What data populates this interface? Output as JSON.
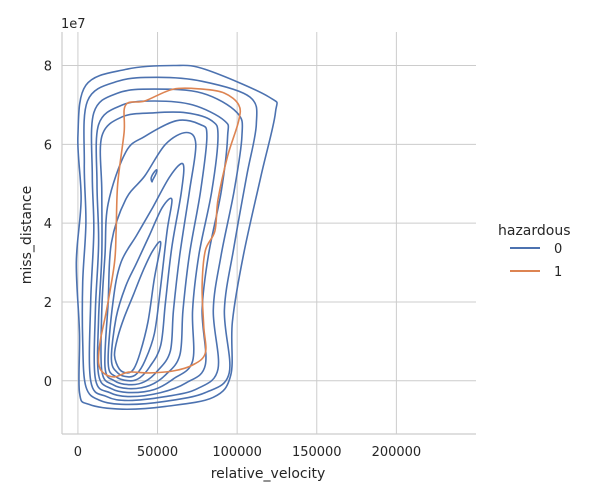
{
  "chart_data": {
    "type": "kde-contour",
    "xlabel": "relative_velocity",
    "ylabel": "miss_distance",
    "y_offset_label": "1e7",
    "xlim": [
      -10000,
      250000
    ],
    "ylim": [
      -13500000.0,
      88500000.0
    ],
    "x_ticks": [
      0,
      50000,
      100000,
      150000,
      200000
    ],
    "x_tick_labels": [
      "0",
      "50000",
      "100000",
      "150000",
      "200000"
    ],
    "y_ticks": [
      0,
      20000000,
      40000000,
      60000000,
      80000000
    ],
    "y_tick_labels": [
      "0",
      "2",
      "4",
      "6",
      "8"
    ],
    "grid": true,
    "legend": {
      "title": "hazardous",
      "placement": "right",
      "entries": [
        {
          "label": "0",
          "color": "#4c72b0"
        },
        {
          "label": "1",
          "color": "#dd8452"
        }
      ]
    },
    "series": [
      {
        "name": "0",
        "color": "#4c72b0",
        "contours": [
          [
            [
              1000,
              -3000000
            ],
            [
              7000,
              -6000000
            ],
            [
              28000,
              -7200000
            ],
            [
              55000,
              -6500000
            ],
            [
              85000,
              -4200000
            ],
            [
              96000,
              1500000
            ],
            [
              97000,
              15000000
            ],
            [
              104000,
              32000000
            ],
            [
              115000,
              52000000
            ],
            [
              124000,
              68000000
            ],
            [
              120000,
              72000000
            ],
            [
              80000,
              79000000
            ],
            [
              60000,
              80000000
            ],
            [
              30000,
              79000000
            ],
            [
              5000,
              75000000
            ],
            [
              0,
              62000000
            ],
            [
              2000,
              46000000
            ],
            [
              -1000,
              30000000
            ],
            [
              1000,
              12000000
            ]
          ],
          [
            [
              5000,
              -1500000
            ],
            [
              14000,
              -5000000
            ],
            [
              30000,
              -6000000
            ],
            [
              55000,
              -5200000
            ],
            [
              80000,
              -3000000
            ],
            [
              95000,
              2000000
            ],
            [
              92000,
              18000000
            ],
            [
              98000,
              34000000
            ],
            [
              106000,
              52000000
            ],
            [
              112000,
              65000000
            ],
            [
              108000,
              72000000
            ],
            [
              78000,
              76000000
            ],
            [
              50000,
              77000000
            ],
            [
              25000,
              76000000
            ],
            [
              6000,
              71000000
            ],
            [
              4000,
              55000000
            ],
            [
              5000,
              40000000
            ],
            [
              3000,
              25000000
            ],
            [
              3000,
              10000000
            ]
          ],
          [
            [
              8000,
              0
            ],
            [
              18000,
              -4000000
            ],
            [
              32000,
              -5000000
            ],
            [
              55000,
              -4000000
            ],
            [
              75000,
              -2000000
            ],
            [
              88000,
              3000000
            ],
            [
              85000,
              18000000
            ],
            [
              90000,
              32000000
            ],
            [
              98000,
              48000000
            ],
            [
              103000,
              62000000
            ],
            [
              100000,
              68000000
            ],
            [
              78000,
              73000000
            ],
            [
              48000,
              74000000
            ],
            [
              25000,
              73000000
            ],
            [
              10000,
              68000000
            ],
            [
              9000,
              52000000
            ],
            [
              10000,
              38000000
            ],
            [
              8000,
              20000000
            ]
          ],
          [
            [
              11000,
              500000
            ],
            [
              20000,
              -3000000
            ],
            [
              33000,
              -4000000
            ],
            [
              52000,
              -3000000
            ],
            [
              68000,
              -500000
            ],
            [
              80000,
              4000000
            ],
            [
              78000,
              18000000
            ],
            [
              82000,
              32000000
            ],
            [
              90000,
              48000000
            ],
            [
              94000,
              62000000
            ],
            [
              92000,
              66000000
            ],
            [
              72000,
              70000000
            ],
            [
              48000,
              71000000
            ],
            [
              28000,
              70000000
            ],
            [
              13000,
              65000000
            ],
            [
              12000,
              50000000
            ],
            [
              13000,
              35000000
            ],
            [
              11000,
              18000000
            ]
          ],
          [
            [
              13000,
              1500000
            ],
            [
              21000,
              -2000000
            ],
            [
              33000,
              -3000000
            ],
            [
              48000,
              -2200000
            ],
            [
              60000,
              500000
            ],
            [
              72000,
              5000000
            ],
            [
              72000,
              18000000
            ],
            [
              76000,
              32000000
            ],
            [
              84000,
              48000000
            ],
            [
              88000,
              62000000
            ],
            [
              84000,
              66000000
            ],
            [
              68000,
              68000000
            ],
            [
              48000,
              68000000
            ],
            [
              28000,
              67000000
            ],
            [
              15000,
              62000000
            ],
            [
              15000,
              48000000
            ],
            [
              15000,
              32000000
            ],
            [
              13000,
              16000000
            ]
          ],
          [
            [
              15000,
              2500000
            ],
            [
              22000,
              -1000000
            ],
            [
              33000,
              -2000000
            ],
            [
              45000,
              -1200000
            ],
            [
              55000,
              1500000
            ],
            [
              64000,
              6500000
            ],
            [
              66000,
              18000000
            ],
            [
              70000,
              32000000
            ],
            [
              77000,
              48000000
            ],
            [
              81000,
              62000000
            ],
            [
              77000,
              65000000
            ],
            [
              62000,
              66000000
            ],
            [
              42000,
              62000000
            ],
            [
              30000,
              58000000
            ],
            [
              19000,
              45000000
            ],
            [
              17000,
              32000000
            ],
            [
              15000,
              18000000
            ]
          ],
          [
            [
              17000,
              3500000
            ],
            [
              23000,
              0
            ],
            [
              33000,
              -1000000
            ],
            [
              42000,
              -200000
            ],
            [
              50000,
              2500000
            ],
            [
              58000,
              7500000
            ],
            [
              60000,
              18000000
            ],
            [
              64000,
              32000000
            ],
            [
              70000,
              48000000
            ],
            [
              74000,
              60000000
            ],
            [
              68000,
              63000000
            ],
            [
              55000,
              60000000
            ],
            [
              42000,
              52000000
            ],
            [
              30000,
              46000000
            ],
            [
              21000,
              35000000
            ],
            [
              19000,
              20000000
            ]
          ],
          [
            [
              19000,
              4500000
            ],
            [
              24000,
              1000000
            ],
            [
              33000,
              0
            ],
            [
              39000,
              800000
            ],
            [
              45000,
              3500000
            ],
            [
              52000,
              9000000
            ],
            [
              55000,
              20000000
            ],
            [
              59000,
              34000000
            ],
            [
              65000,
              48000000
            ],
            [
              66000,
              55000000
            ],
            [
              58000,
              52000000
            ],
            [
              47000,
              44000000
            ],
            [
              37000,
              37000000
            ],
            [
              27000,
              30000000
            ],
            [
              22000,
              20000000
            ]
          ],
          [
            [
              21000,
              5500000
            ],
            [
              25000,
              2000000
            ],
            [
              32000,
              1000000
            ],
            [
              37000,
              1800000
            ],
            [
              42000,
              5000000
            ],
            [
              48000,
              12000000
            ],
            [
              52000,
              24000000
            ],
            [
              56000,
              38000000
            ],
            [
              59000,
              46000000
            ],
            [
              53000,
              44000000
            ],
            [
              45000,
              37000000
            ],
            [
              37000,
              30000000
            ],
            [
              30000,
              24000000
            ],
            [
              24000,
              16000000
            ]
          ],
          [
            [
              23000,
              6500000
            ],
            [
              26000,
              3000000
            ],
            [
              31000,
              2000000
            ],
            [
              35000,
              3000000
            ],
            [
              39000,
              7000000
            ],
            [
              44000,
              15000000
            ],
            [
              48000,
              26000000
            ],
            [
              52000,
              35000000
            ],
            [
              47000,
              33000000
            ],
            [
              41000,
              28000000
            ],
            [
              35000,
              22000000
            ],
            [
              29000,
              16000000
            ],
            [
              25000,
              11000000
            ]
          ],
          [
            [
              47000,
              51000000
            ],
            [
              49000,
              52500000
            ],
            [
              49500,
              53500000
            ],
            [
              48000,
              53000000
            ],
            [
              46000,
              51500000
            ],
            [
              46500,
              50500000
            ]
          ]
        ]
      },
      {
        "name": "1",
        "color": "#dd8452",
        "contours": [
          [
            [
              13000,
              4500000
            ],
            [
              16000,
              2000000
            ],
            [
              23000,
              1000000
            ],
            [
              32000,
              2200000
            ],
            [
              45000,
              2000000
            ],
            [
              60000,
              2500000
            ],
            [
              72000,
              4000000
            ],
            [
              80000,
              7000000
            ],
            [
              79000,
              14000000
            ],
            [
              78000,
              24000000
            ],
            [
              80000,
              33000000
            ],
            [
              86000,
              38000000
            ],
            [
              88000,
              46000000
            ],
            [
              94000,
              57000000
            ],
            [
              101000,
              66000000
            ],
            [
              101000,
              70000000
            ],
            [
              92000,
              73000000
            ],
            [
              78000,
              74000000
            ],
            [
              60000,
              74000000
            ],
            [
              42000,
              71000000
            ],
            [
              30000,
              70000000
            ],
            [
              29000,
              63000000
            ],
            [
              25000,
              50000000
            ],
            [
              24000,
              38000000
            ],
            [
              23000,
              30000000
            ],
            [
              18000,
              18000000
            ],
            [
              14000,
              10000000
            ]
          ]
        ]
      }
    ]
  }
}
